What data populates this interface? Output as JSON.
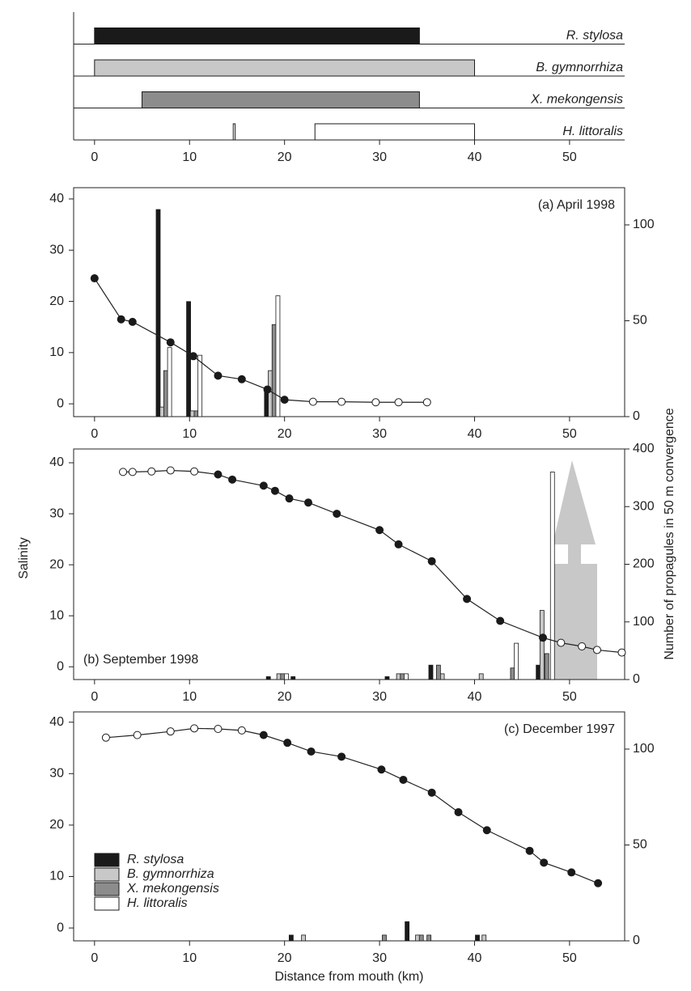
{
  "chart_data": [
    {
      "type": "range",
      "xlim": [
        -2.2,
        55.8
      ],
      "xticks": [
        0,
        10,
        20,
        30,
        40,
        50
      ],
      "series": [
        {
          "name": "R. stylosa",
          "color": "#1a1a1a",
          "ranges": [
            [
              0,
              34.2
            ]
          ]
        },
        {
          "name": "B. gymnorrhiza",
          "color": "#c8c8c8",
          "ranges": [
            [
              0,
              40
            ]
          ]
        },
        {
          "name": "X. mekongensis",
          "color": "#8c8c8c",
          "ranges": [
            [
              5,
              34.2
            ]
          ]
        },
        {
          "name": "H. littoralis",
          "color": "#ffffff",
          "ranges": [
            [
              14.6,
              14.8
            ],
            [
              23.2,
              40
            ]
          ]
        }
      ]
    },
    {
      "type": "bar_line",
      "annotation": "(a) April 1998",
      "annotation_corner": "upper right",
      "xlim": [
        -2.2,
        55.8
      ],
      "xticks": [
        0,
        10,
        20,
        30,
        40,
        50
      ],
      "ylim": [
        -2.5,
        42.2
      ],
      "yticks": [
        0,
        10,
        20,
        30,
        40
      ],
      "y2lim": [
        0,
        119.4
      ],
      "y2ticks": [
        0,
        50,
        100
      ],
      "ylabel": "Salinity",
      "line": {
        "x": [
          0,
          2.8,
          4,
          8,
          10.4,
          13,
          15.5,
          18.2,
          20,
          23,
          26,
          29.6,
          32,
          35
        ],
        "values": [
          24.5,
          16.5,
          16,
          12,
          9.3,
          5.5,
          4.8,
          2.8,
          0.8,
          0.4,
          0.4,
          0.3,
          0.3,
          0.3
        ],
        "hollow": [
          false,
          false,
          false,
          false,
          false,
          false,
          false,
          false,
          false,
          true,
          true,
          true,
          true,
          true
        ]
      },
      "series": [
        {
          "axis": "y2",
          "x": [
            6.7,
            9.9,
            18.1
          ],
          "values": [
            108,
            60,
            15
          ]
        },
        {
          "axis": "y2",
          "x": [
            7.1,
            10.3,
            18.5
          ],
          "values": [
            5,
            3,
            24
          ]
        },
        {
          "axis": "y2",
          "x": [
            7.5,
            10.7,
            18.9
          ],
          "values": [
            24,
            3,
            48
          ]
        },
        {
          "axis": "y2",
          "x": [
            7.9,
            11.1,
            19.3
          ],
          "values": [
            36,
            32,
            63
          ]
        }
      ]
    },
    {
      "type": "bar_line",
      "annotation": "(b) September 1998",
      "annotation_corner": "lower left",
      "xlim": [
        -2.2,
        55.8
      ],
      "xticks": [
        0,
        10,
        20,
        30,
        40,
        50
      ],
      "ylim": [
        -2.5,
        42.7
      ],
      "yticks": [
        0,
        10,
        20,
        30,
        40
      ],
      "y2lim": [
        0,
        400
      ],
      "y2ticks": [
        0,
        100,
        200,
        300,
        400
      ],
      "y2label": "Number of propagules in 50 m convergence",
      "line": {
        "x": [
          3,
          4,
          6,
          8,
          10.5,
          13,
          14.5,
          17.8,
          19,
          20.5,
          22.5,
          25.5,
          30,
          32,
          35.5,
          39.2,
          42.7,
          47.2,
          49.1,
          51.3,
          52.9,
          55.5
        ],
        "values": [
          38.2,
          38.2,
          38.3,
          38.5,
          38.3,
          37.7,
          36.7,
          35.5,
          34.5,
          33,
          32.2,
          30,
          26.8,
          24,
          20.7,
          13.3,
          9,
          5.7,
          4.7,
          4,
          3.3,
          2.8
        ],
        "hollow": [
          true,
          true,
          true,
          true,
          true,
          false,
          false,
          false,
          false,
          false,
          false,
          false,
          false,
          false,
          false,
          false,
          false,
          false,
          true,
          true,
          true,
          true
        ]
      },
      "series": [
        {
          "axis": "y2",
          "x": [
            18.3,
            20.9,
            30.8,
            35.4,
            46.7
          ],
          "values": [
            5,
            5,
            5,
            25,
            25
          ]
        },
        {
          "axis": "y2",
          "x": [
            19.4,
            32.0,
            36.6,
            40.7,
            47.1
          ],
          "values": [
            10,
            10,
            10,
            10,
            120
          ]
        },
        {
          "axis": "y2",
          "x": [
            19.8,
            32.4,
            36.2,
            44.0,
            47.6
          ],
          "values": [
            10,
            10,
            25,
            20,
            45
          ]
        },
        {
          "axis": "y2",
          "x": [
            20.2,
            32.8,
            44.4,
            48.2
          ],
          "values": [
            10,
            10,
            63,
            360
          ]
        }
      ]
    },
    {
      "type": "bar_line",
      "annotation": "(c) December 1997",
      "annotation_corner": "upper right",
      "xlim": [
        -2.2,
        55.8
      ],
      "xticks": [
        0,
        10,
        20,
        30,
        40,
        50
      ],
      "ylim": [
        -2.5,
        42
      ],
      "yticks": [
        0,
        10,
        20,
        30,
        40
      ],
      "y2lim": [
        0,
        119.4
      ],
      "y2ticks": [
        0,
        50,
        100
      ],
      "xlabel": "Distance from mouth (km)",
      "legend": true,
      "legend_corner": "lower left",
      "line": {
        "x": [
          1.2,
          4.5,
          8,
          10.5,
          13,
          15.5,
          17.8,
          20.3,
          22.8,
          26,
          30.2,
          32.5,
          35.5,
          38.3,
          41.3,
          45.8,
          47.3,
          50.2,
          53
        ],
        "values": [
          37,
          37.5,
          38.2,
          38.8,
          38.7,
          38.4,
          37.5,
          36,
          34.3,
          33.3,
          30.8,
          28.8,
          26.3,
          22.5,
          19,
          15,
          12.7,
          10.8,
          8.7
        ],
        "hollow": [
          true,
          true,
          true,
          true,
          true,
          true,
          false,
          false,
          false,
          false,
          false,
          false,
          false,
          false,
          false,
          false,
          false,
          false,
          false
        ]
      },
      "series": [
        {
          "axis": "y2",
          "x": [
            20.7,
            32.9,
            40.3
          ],
          "values": [
            3,
            10,
            3
          ]
        },
        {
          "axis": "y2",
          "x": [
            22.0,
            34.0,
            41.0
          ],
          "values": [
            3,
            3,
            3
          ]
        },
        {
          "axis": "y2",
          "x": [
            30.5,
            34.4,
            35.2
          ],
          "values": [
            3,
            3,
            3
          ]
        },
        {
          "axis": "y2",
          "x": [],
          "values": []
        }
      ]
    }
  ]
}
